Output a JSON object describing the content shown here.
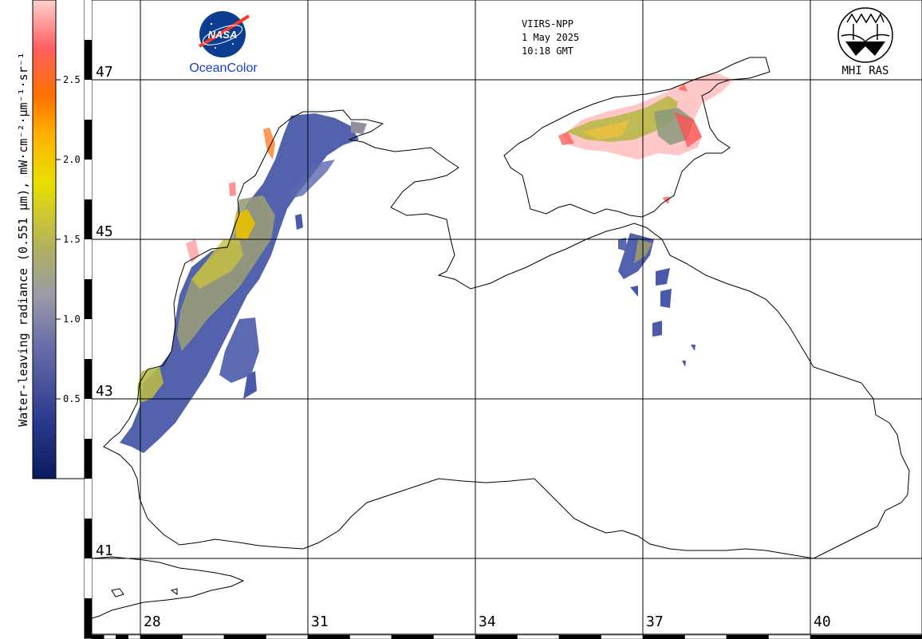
{
  "info": {
    "sensor": "VIIRS-NPP",
    "date": "1 May 2025",
    "time": "10:18 GMT"
  },
  "logos": {
    "nasa": "NASA",
    "oceancolor": "OceanColor",
    "mhi": "MHI RAS"
  },
  "colorbar": {
    "title": "Water-leaving radiance (0.551 µm), mW·cm⁻²·µm⁻¹·sr⁻¹",
    "min": 0.0,
    "max": 3.0,
    "ticks": [
      {
        "value": 0.5,
        "label": "0.5"
      },
      {
        "value": 1.0,
        "label": "1.0"
      },
      {
        "value": 1.5,
        "label": "1.5"
      },
      {
        "value": 2.0,
        "label": "2.0"
      },
      {
        "value": 2.5,
        "label": "2.5"
      }
    ],
    "colors": [
      "#0a1a5e",
      "#3a4aa0",
      "#8888b8",
      "#b8b870",
      "#e8e800",
      "#ff8c00",
      "#ff4a4a",
      "#ffc0c0"
    ]
  },
  "map": {
    "lat_labels": [
      {
        "value": 47,
        "label": "47"
      },
      {
        "value": 45,
        "label": "45"
      },
      {
        "value": 43,
        "label": "43"
      },
      {
        "value": 41,
        "label": "41"
      }
    ],
    "lon_labels": [
      {
        "value": 28,
        "label": "28"
      },
      {
        "value": 31,
        "label": "31"
      },
      {
        "value": 34,
        "label": "34"
      },
      {
        "value": 37,
        "label": "37"
      },
      {
        "value": 40,
        "label": "40"
      }
    ]
  }
}
